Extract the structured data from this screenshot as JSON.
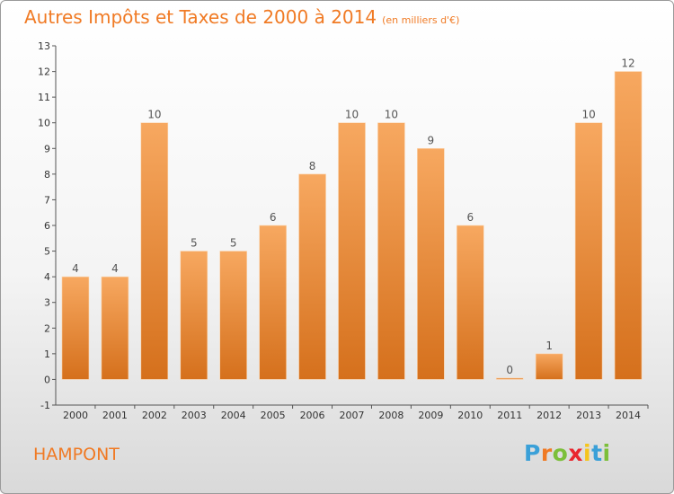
{
  "header": {
    "title": "Autres Impôts et Taxes de 2000 à 2014",
    "subtitle": "(en milliers d'€)"
  },
  "footer": {
    "town": "HAMPONT",
    "logo_text": "Proxiti"
  },
  "colors": {
    "accent": "#f07a24",
    "bar_light": "#f7a860",
    "bar_dark": "#d5701c",
    "logo": [
      "#3aa0d8",
      "#f07a24",
      "#7cbf3a",
      "#e9262e",
      "#f5c51d",
      "#3aa0d8",
      "#7cbf3a"
    ]
  },
  "chart_data": {
    "type": "bar",
    "title": "Autres Impôts et Taxes de 2000 à 2014",
    "subtitle": "(en milliers d'€)",
    "categories": [
      "2000",
      "2001",
      "2002",
      "2003",
      "2004",
      "2005",
      "2006",
      "2007",
      "2008",
      "2009",
      "2010",
      "2011",
      "2012",
      "2013",
      "2014"
    ],
    "values": [
      4,
      4,
      10,
      5,
      5,
      6,
      8,
      10,
      10,
      9,
      6,
      0,
      1,
      10,
      12
    ],
    "ylim": [
      -1,
      13
    ],
    "yticks": [
      -1,
      0,
      1,
      2,
      3,
      4,
      5,
      6,
      7,
      8,
      9,
      10,
      11,
      12,
      13
    ],
    "grid": false,
    "legend": "none"
  }
}
